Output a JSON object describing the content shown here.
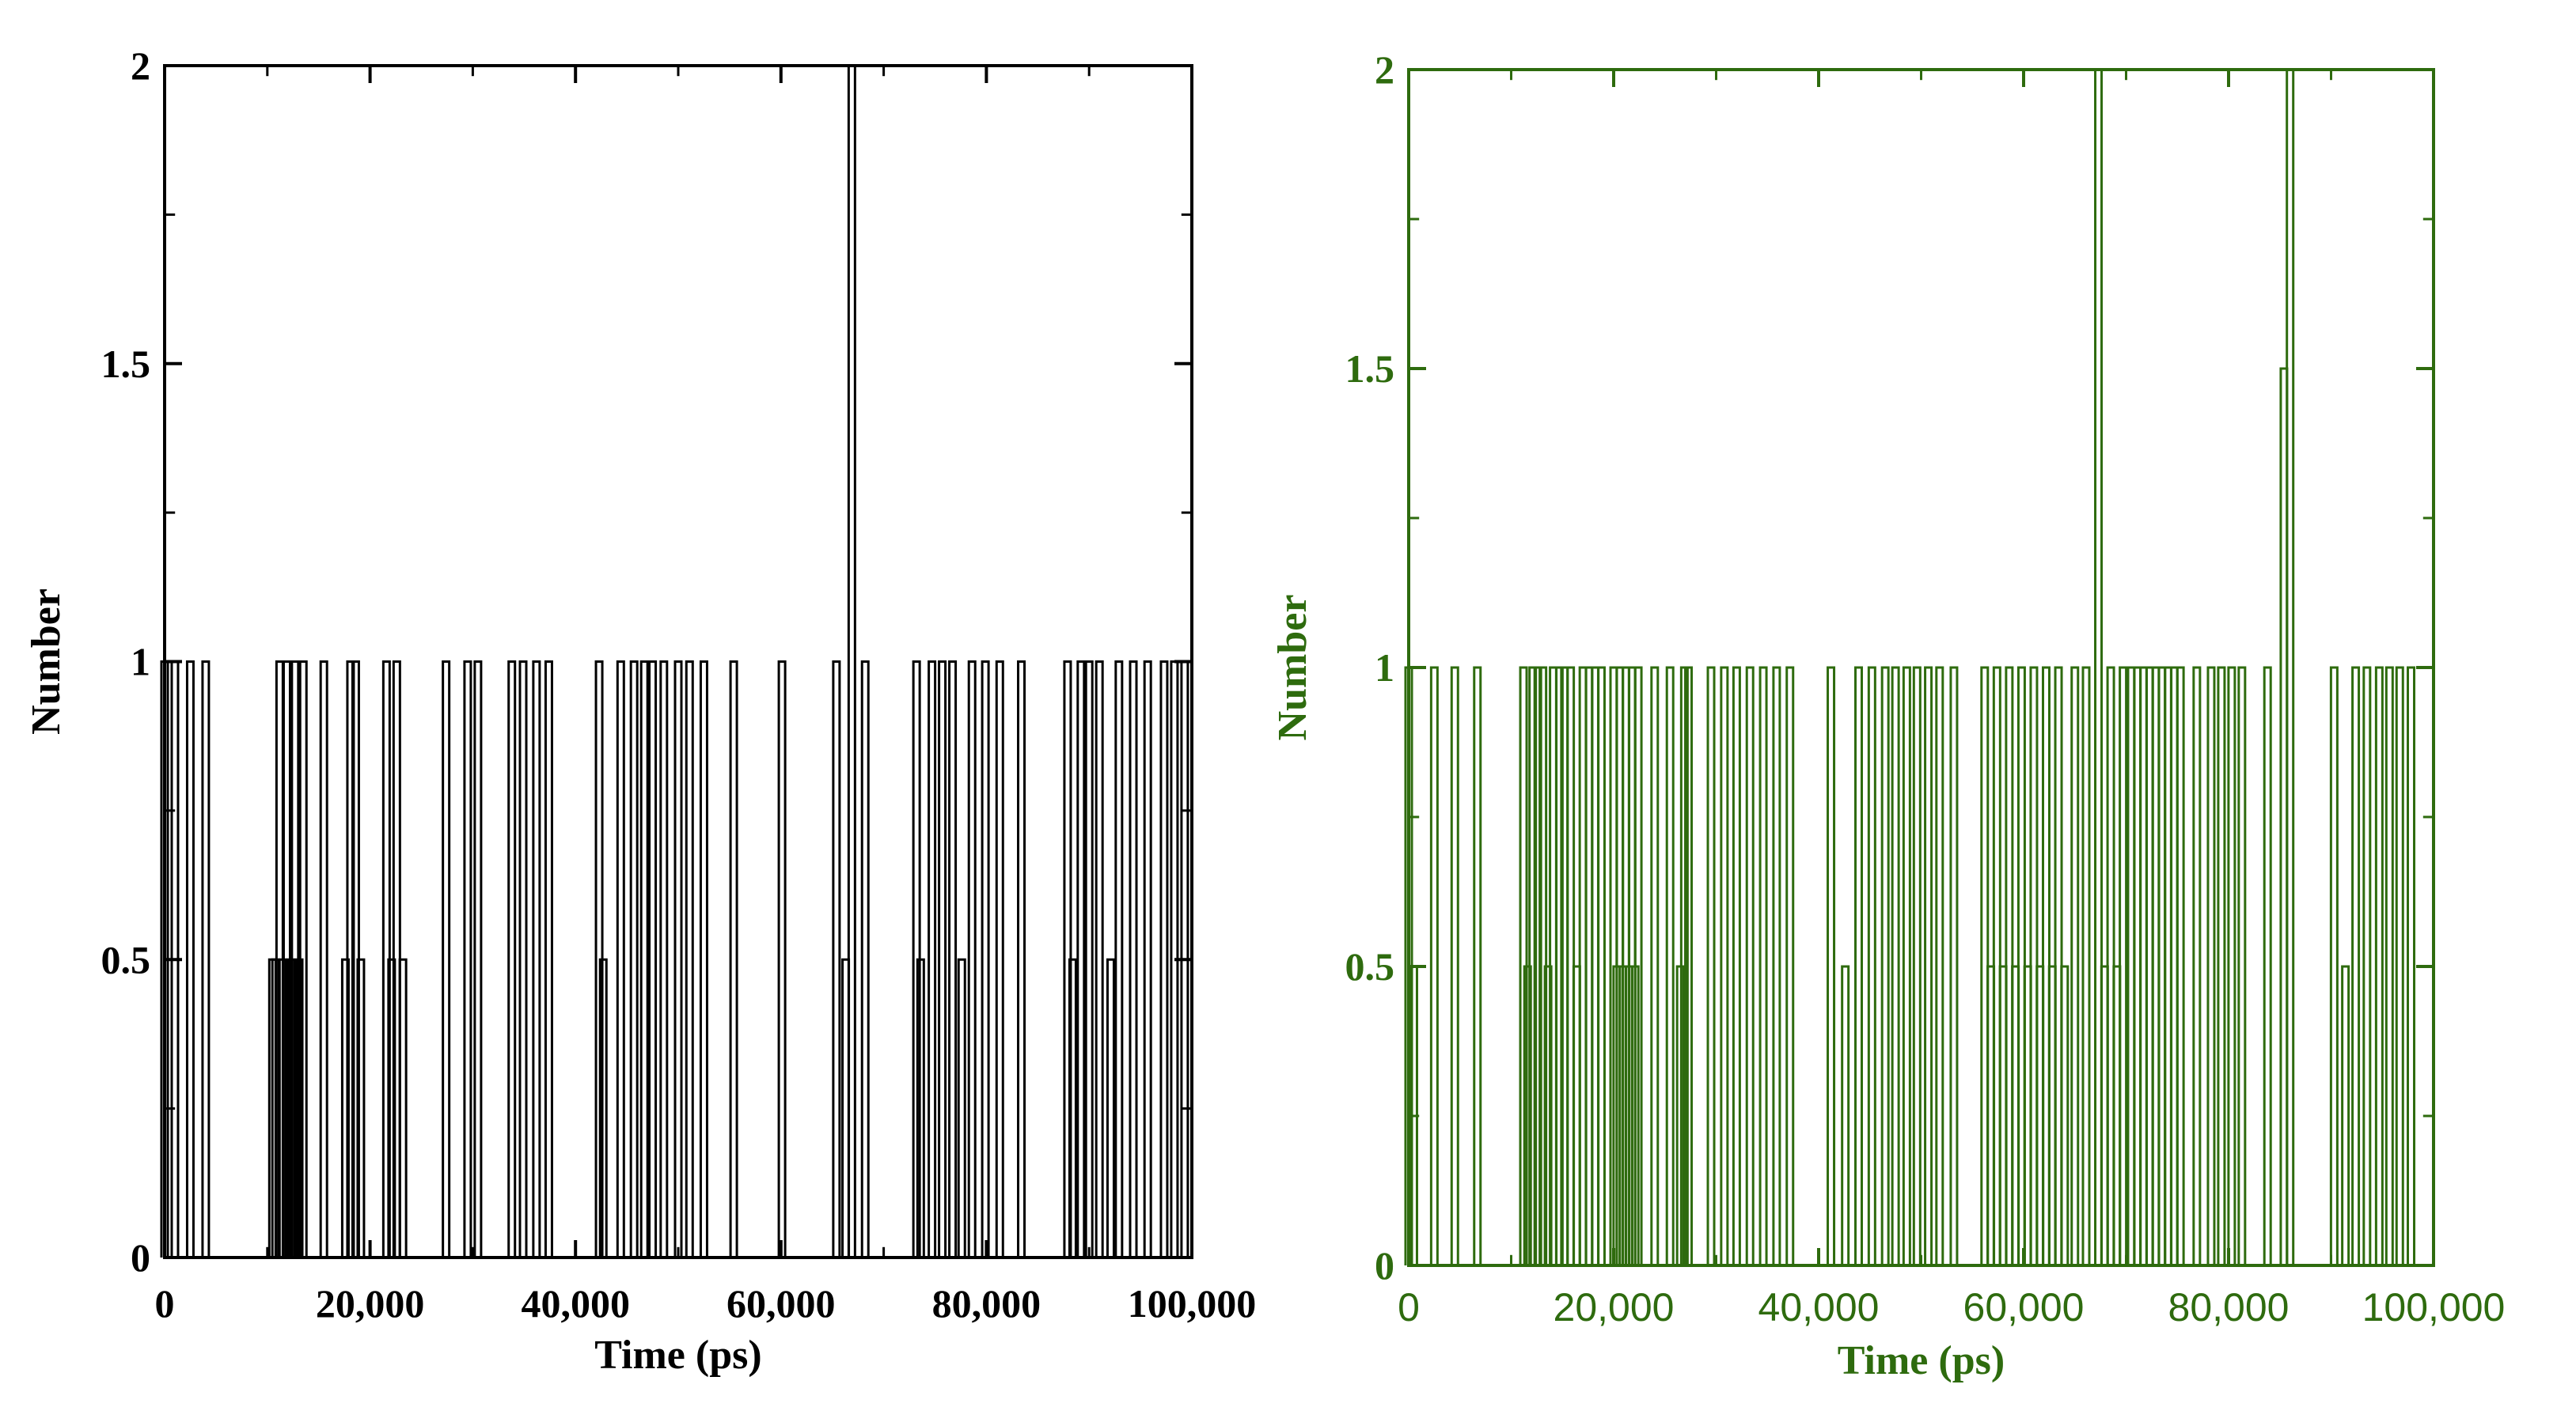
{
  "chart_data": [
    {
      "type": "line",
      "panel": "left",
      "color": "#000000",
      "title": "",
      "xlabel": "Time (ps)",
      "ylabel": "Number",
      "xlim": [
        0,
        100000
      ],
      "ylim": [
        0,
        2
      ],
      "x_ticks": [
        {
          "value": 0,
          "label": "0"
        },
        {
          "value": 20000,
          "label": "20,000"
        },
        {
          "value": 40000,
          "label": "40,000"
        },
        {
          "value": 60000,
          "label": "60,000"
        },
        {
          "value": 80000,
          "label": "80,000"
        },
        {
          "value": 100000,
          "label": "100,000"
        }
      ],
      "y_ticks": [
        {
          "value": 0,
          "label": "0"
        },
        {
          "value": 0.5,
          "label": "0.5"
        },
        {
          "value": 1,
          "label": "1"
        },
        {
          "value": 1.5,
          "label": "1.5"
        },
        {
          "value": 2,
          "label": "2"
        }
      ],
      "grid": false,
      "series": [
        {
          "values": [
            [
              0,
              1
            ],
            [
              1000,
              1
            ],
            [
              2500,
              1
            ],
            [
              4000,
              1
            ],
            [
              10500,
              0.5
            ],
            [
              10800,
              0.5
            ],
            [
              11200,
              1
            ],
            [
              11500,
              0.5
            ],
            [
              11900,
              1
            ],
            [
              12300,
              0.5
            ],
            [
              12700,
              1
            ],
            [
              13100,
              0.5
            ],
            [
              13500,
              1
            ],
            [
              15500,
              1
            ],
            [
              17600,
              0.5
            ],
            [
              18100,
              1
            ],
            [
              18600,
              1
            ],
            [
              19100,
              0.5
            ],
            [
              21600,
              1
            ],
            [
              22100,
              0.5
            ],
            [
              22600,
              1
            ],
            [
              23200,
              0.5
            ],
            [
              27400,
              1
            ],
            [
              29500,
              1
            ],
            [
              30500,
              1
            ],
            [
              33800,
              1
            ],
            [
              34900,
              1
            ],
            [
              36200,
              1
            ],
            [
              37400,
              1
            ],
            [
              42300,
              1
            ],
            [
              42700,
              0.5
            ],
            [
              44400,
              1
            ],
            [
              45700,
              1
            ],
            [
              46700,
              1
            ],
            [
              47500,
              1
            ],
            [
              48600,
              1
            ],
            [
              50000,
              1
            ],
            [
              51100,
              1
            ],
            [
              52500,
              1
            ],
            [
              55400,
              1
            ],
            [
              60100,
              1
            ],
            [
              65400,
              1
            ],
            [
              66300,
              0.5
            ],
            [
              66900,
              2
            ],
            [
              68200,
              1
            ],
            [
              73200,
              1
            ],
            [
              73600,
              0.5
            ],
            [
              74700,
              1
            ],
            [
              75700,
              1
            ],
            [
              76700,
              1
            ],
            [
              77600,
              0.5
            ],
            [
              78600,
              1
            ],
            [
              79900,
              1
            ],
            [
              81300,
              1
            ],
            [
              83400,
              1
            ],
            [
              87900,
              1
            ],
            [
              88400,
              0.5
            ],
            [
              89200,
              1
            ],
            [
              90000,
              1
            ],
            [
              91000,
              1
            ],
            [
              92100,
              0.5
            ],
            [
              92900,
              1
            ],
            [
              94300,
              1
            ],
            [
              95700,
              1
            ],
            [
              97300,
              1
            ],
            [
              98300,
              1
            ],
            [
              99300,
              1
            ]
          ]
        }
      ]
    },
    {
      "type": "line",
      "panel": "right",
      "color": "#2e6b0e",
      "title": "",
      "xlabel": "Time (ps)",
      "ylabel": "Number",
      "xlim": [
        0,
        100000
      ],
      "ylim": [
        0,
        2
      ],
      "x_ticks": [
        {
          "value": 0,
          "label": "0"
        },
        {
          "value": 20000,
          "label": "20,000"
        },
        {
          "value": 40000,
          "label": "40,000"
        },
        {
          "value": 60000,
          "label": "60,000"
        },
        {
          "value": 80000,
          "label": "80,000"
        },
        {
          "value": 100000,
          "label": "100,000"
        }
      ],
      "y_ticks": [
        {
          "value": 0,
          "label": "0"
        },
        {
          "value": 0.5,
          "label": "0.5"
        },
        {
          "value": 1,
          "label": "1"
        },
        {
          "value": 1.5,
          "label": "1.5"
        },
        {
          "value": 2,
          "label": "2"
        }
      ],
      "grid": false,
      "series": [
        {
          "values": [
            [
              0,
              1
            ],
            [
              500,
              0.5
            ],
            [
              2500,
              1
            ],
            [
              4500,
              1
            ],
            [
              6700,
              1
            ],
            [
              11200,
              1
            ],
            [
              11600,
              0.5
            ],
            [
              12100,
              1
            ],
            [
              12600,
              1
            ],
            [
              13100,
              1
            ],
            [
              13600,
              0.5
            ],
            [
              14100,
              1
            ],
            [
              14700,
              1
            ],
            [
              15200,
              1
            ],
            [
              15800,
              1
            ],
            [
              16400,
              0.5
            ],
            [
              17000,
              1
            ],
            [
              17600,
              1
            ],
            [
              18200,
              1
            ],
            [
              18800,
              1
            ],
            [
              20000,
              1
            ],
            [
              20300,
              0.5
            ],
            [
              20600,
              1
            ],
            [
              20900,
              0.5
            ],
            [
              21200,
              1
            ],
            [
              21500,
              0.5
            ],
            [
              21800,
              1
            ],
            [
              22100,
              0.5
            ],
            [
              22400,
              1
            ],
            [
              24000,
              1
            ],
            [
              25500,
              1
            ],
            [
              26500,
              0.5
            ],
            [
              26900,
              1
            ],
            [
              27300,
              1
            ],
            [
              29500,
              1
            ],
            [
              30800,
              1
            ],
            [
              32000,
              1
            ],
            [
              33300,
              1
            ],
            [
              34600,
              1
            ],
            [
              35900,
              1
            ],
            [
              37200,
              1
            ],
            [
              41200,
              1
            ],
            [
              42600,
              0.5
            ],
            [
              43900,
              1
            ],
            [
              45200,
              1
            ],
            [
              46500,
              1
            ],
            [
              47500,
              1
            ],
            [
              48600,
              1
            ],
            [
              49600,
              1
            ],
            [
              50700,
              1
            ],
            [
              51800,
              1
            ],
            [
              53200,
              1
            ],
            [
              56200,
              1
            ],
            [
              56800,
              0.5
            ],
            [
              57400,
              1
            ],
            [
              58000,
              0.5
            ],
            [
              58600,
              1
            ],
            [
              59200,
              0.5
            ],
            [
              59800,
              1
            ],
            [
              60400,
              0.5
            ],
            [
              61000,
              1
            ],
            [
              61600,
              0.5
            ],
            [
              62200,
              1
            ],
            [
              62800,
              0.5
            ],
            [
              63400,
              1
            ],
            [
              64000,
              0.5
            ],
            [
              65000,
              1
            ],
            [
              66100,
              1
            ],
            [
              67300,
              2
            ],
            [
              67900,
              0.5
            ],
            [
              68500,
              1
            ],
            [
              69100,
              0.5
            ],
            [
              69700,
              1
            ],
            [
              70500,
              1
            ],
            [
              71100,
              1
            ],
            [
              71700,
              1
            ],
            [
              72300,
              1
            ],
            [
              72900,
              1
            ],
            [
              73500,
              1
            ],
            [
              74100,
              1
            ],
            [
              74700,
              1
            ],
            [
              75300,
              1
            ],
            [
              76900,
              1
            ],
            [
              78300,
              1
            ],
            [
              79300,
              1
            ],
            [
              80300,
              1
            ],
            [
              81300,
              1
            ],
            [
              83800,
              1
            ],
            [
              85400,
              1.5
            ],
            [
              86000,
              2
            ],
            [
              90300,
              1
            ],
            [
              91400,
              0.5
            ],
            [
              92400,
              1
            ],
            [
              93500,
              1
            ],
            [
              94700,
              1
            ],
            [
              95700,
              1
            ],
            [
              96700,
              1
            ],
            [
              97800,
              1
            ]
          ]
        }
      ]
    }
  ]
}
